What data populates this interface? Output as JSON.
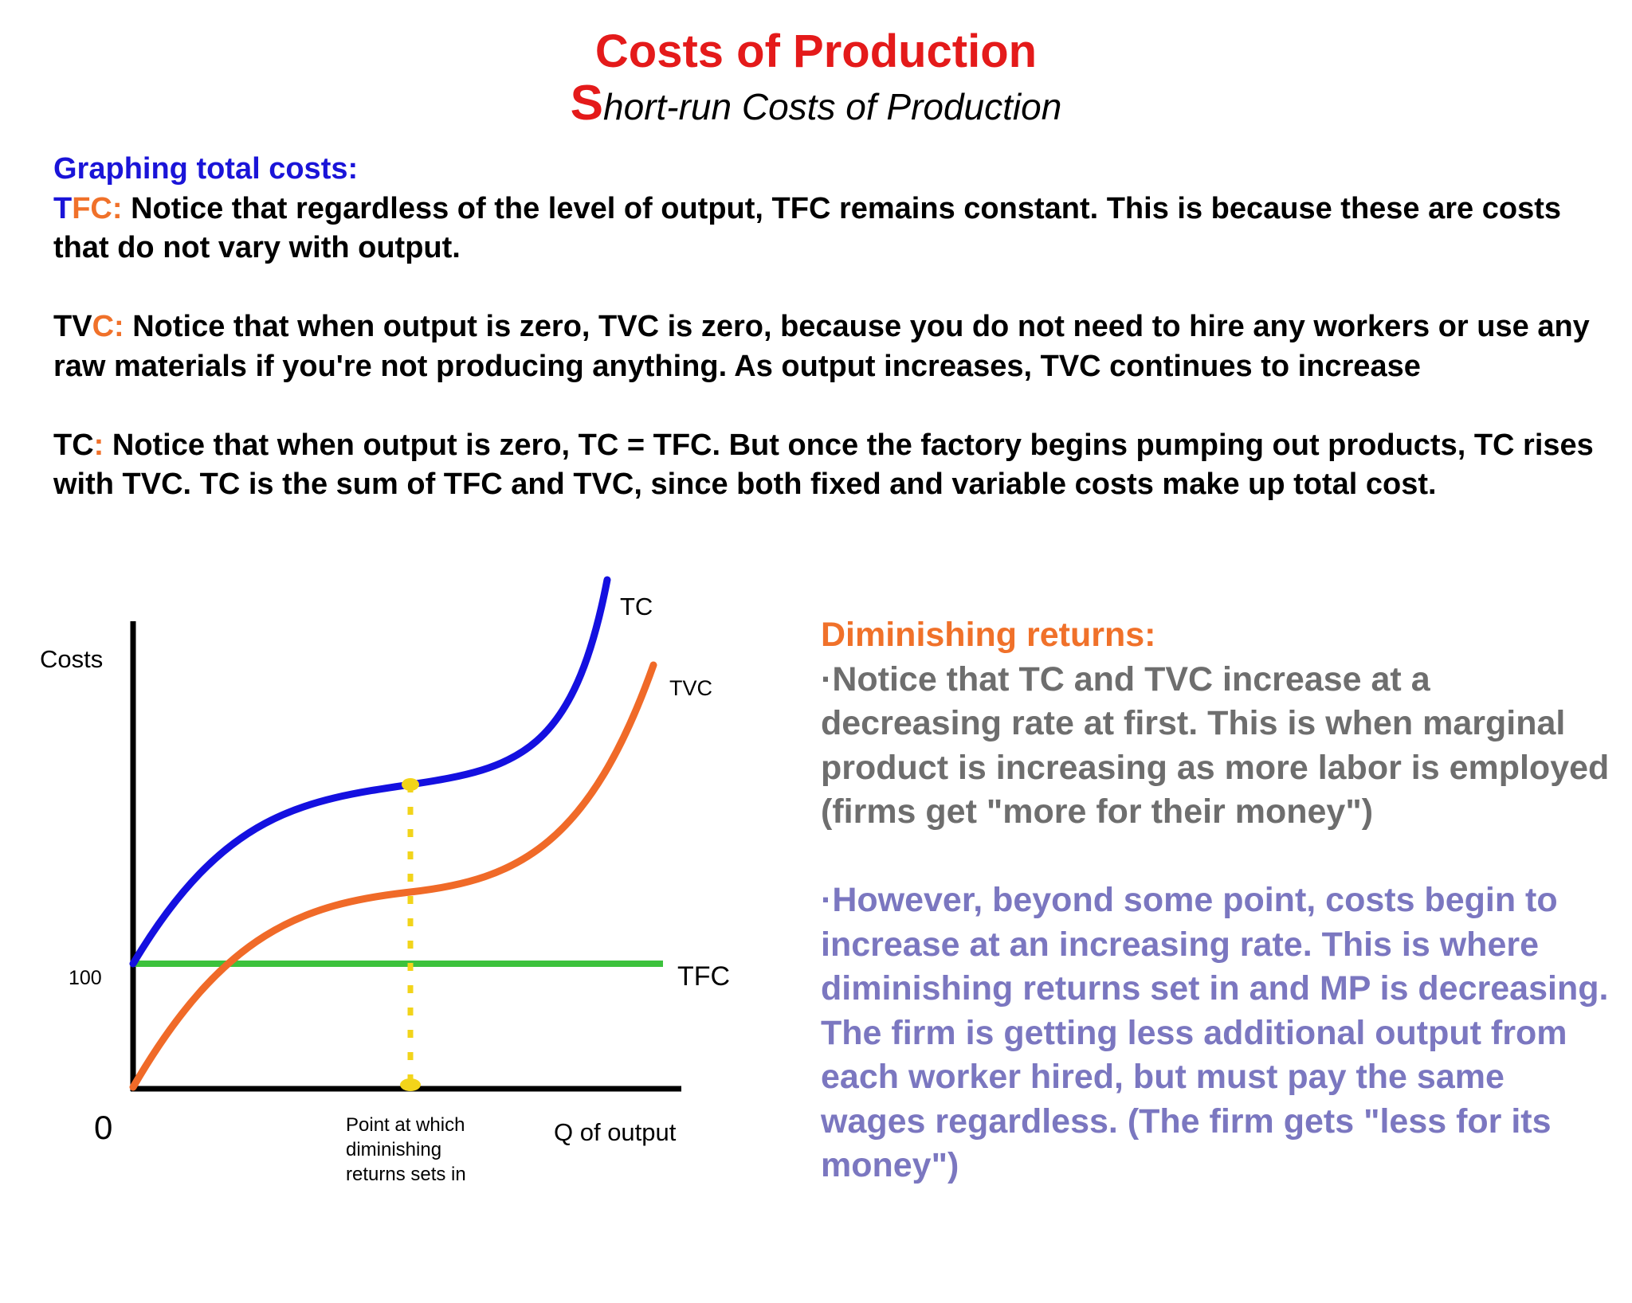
{
  "colors": {
    "title": "#e41a1a",
    "heading_blue": "#1a14d8",
    "accent_orange": "#f0712a",
    "text_black": "#000000",
    "side_gray": "#6e6e6e",
    "side_purple": "#7b77c0",
    "tc_curve": "#1410e0",
    "tvc_curve": "#f06a28",
    "tfc_line": "#3cc23c",
    "marker_yellow": "#f2d41a",
    "axis": "#000000"
  },
  "header": {
    "title": "Costs of Production",
    "subtitle_initial": "S",
    "subtitle_rest": "hort-run Costs of Production"
  },
  "body": {
    "heading": "Graphing total costs:",
    "tfc": {
      "label_t": "T",
      "label_fc": "FC",
      "label_colon": ":",
      "text": " Notice that regardless of the level of output, TFC remains constant. This is because these are costs that do not vary with output."
    },
    "tvc": {
      "label_tv": "TV",
      "label_c": "C",
      "label_colon": ":",
      "text": " Notice that when output is zero, TVC is zero, because you do not need to hire any workers or use any raw materials if you're not producing anything. As output increases, TVC continues to increase"
    },
    "tc": {
      "label_tc": "TC",
      "label_colon": ":",
      "text": " Notice that when output is zero, TC = TFC. But once the factory begins pumping out products, TC rises with TVC. TC is the sum of TFC and TVC, since both fixed and variable costs make up total cost."
    }
  },
  "diagram": {
    "y_axis_label": "Costs",
    "x_axis_label": "Q of output",
    "origin_label": "0",
    "y_tick_label": "100",
    "tc_label": "TC",
    "tvc_label": "TVC",
    "tfc_label": "TFC",
    "marker_label_line1": "Point at which",
    "marker_label_line2": "diminishing",
    "marker_label_line3": "returns sets in"
  },
  "side": {
    "heading": "Diminishing returns:",
    "point1": "·Notice that TC and TVC increase at a decreasing rate at first. This is when marginal product is increasing as more labor is employed (firms get \"more for their money\")",
    "point2": "·However, beyond some point, costs begin to increase at an increasing rate. This is where diminishing returns set in and MP is decreasing. The firm is getting less additional output from each worker hired, but must pay the same wages regardless. (The firm gets \"less for its money\")"
  }
}
